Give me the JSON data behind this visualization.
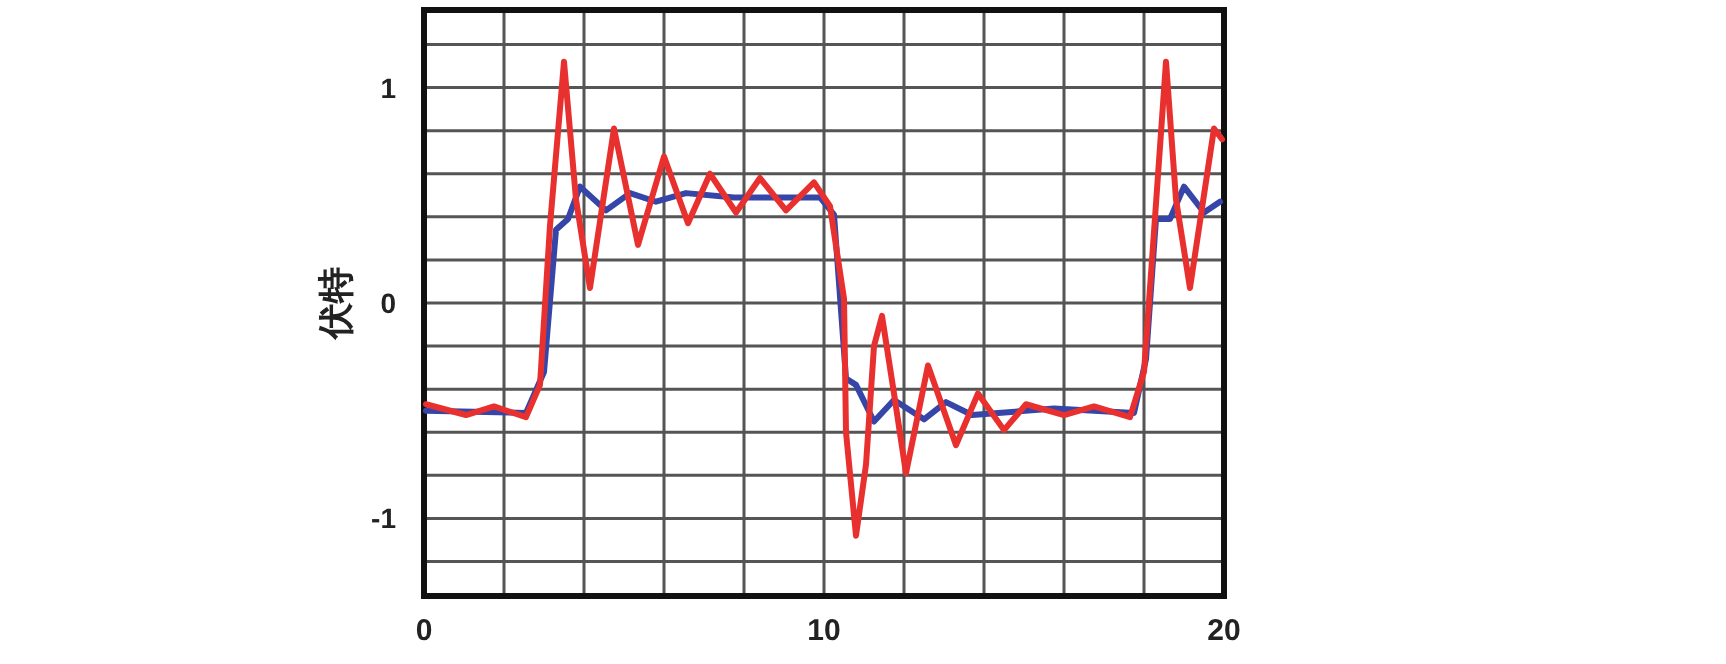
{
  "chart_data": {
    "type": "line",
    "ylabel": "伏特",
    "xlim": [
      0,
      20
    ],
    "ylim": [
      -1.36,
      1.36
    ],
    "xticks": [
      0,
      {
        "value": 2,
        "label": null
      },
      {
        "value": 4,
        "label": null
      },
      {
        "value": 6,
        "label": null
      },
      {
        "value": 8,
        "label": null
      },
      10,
      {
        "value": 12,
        "label": null
      },
      {
        "value": 14,
        "label": null
      },
      {
        "value": 16,
        "label": null
      },
      {
        "value": 18,
        "label": null
      },
      20
    ],
    "yticks": [
      {
        "value": -1.2,
        "label": null
      },
      -1,
      {
        "value": -0.8,
        "label": null
      },
      {
        "value": -0.6,
        "label": null
      },
      {
        "value": -0.4,
        "label": null
      },
      {
        "value": -0.2,
        "label": null
      },
      0,
      {
        "value": 0.2,
        "label": null
      },
      {
        "value": 0.4,
        "label": null
      },
      {
        "value": 0.6,
        "label": null
      },
      {
        "value": 0.8,
        "label": null
      },
      1,
      {
        "value": 1.2,
        "label": null
      }
    ],
    "grid": true,
    "marker": "none",
    "line_style": "solid",
    "series": [
      {
        "color": "#3546a8",
        "x": [
          0.05,
          2.55,
          3.0,
          3.3,
          3.6,
          3.9,
          4.55,
          5.15,
          5.8,
          6.55,
          7.75,
          9.9,
          10.25,
          10.55,
          10.8,
          11.25,
          11.75,
          12.5,
          13.05,
          13.7,
          15.75,
          17.75,
          18.05,
          18.3,
          18.65,
          19.0,
          19.5,
          19.9
        ],
        "values": [
          -0.5,
          -0.51,
          -0.32,
          0.34,
          0.39,
          0.54,
          0.43,
          0.51,
          0.47,
          0.51,
          0.49,
          0.49,
          0.41,
          -0.35,
          -0.38,
          -0.55,
          -0.45,
          -0.54,
          -0.46,
          -0.52,
          -0.49,
          -0.51,
          -0.26,
          0.39,
          0.39,
          0.54,
          0.42,
          0.47
        ]
      },
      {
        "color": "#e8312f",
        "x": [
          0.05,
          1.05,
          1.75,
          2.55,
          2.9,
          3.15,
          3.5,
          3.8,
          4.15,
          4.75,
          5.35,
          6.0,
          6.6,
          7.15,
          7.8,
          8.4,
          9.05,
          9.75,
          10.15,
          10.5,
          10.55,
          10.8,
          11.05,
          11.25,
          11.45,
          11.75,
          12.05,
          12.6,
          13.3,
          13.85,
          14.5,
          15.05,
          16.0,
          16.75,
          17.65,
          18.0,
          18.25,
          18.55,
          18.8,
          19.15,
          19.75,
          19.95
        ],
        "values": [
          -0.47,
          -0.52,
          -0.48,
          -0.53,
          -0.38,
          0.36,
          1.12,
          0.48,
          0.07,
          0.81,
          0.27,
          0.68,
          0.37,
          0.6,
          0.42,
          0.58,
          0.43,
          0.56,
          0.45,
          0.02,
          -0.6,
          -1.08,
          -0.75,
          -0.2,
          -0.06,
          -0.42,
          -0.79,
          -0.29,
          -0.66,
          -0.42,
          -0.59,
          -0.47,
          -0.52,
          -0.48,
          -0.53,
          -0.32,
          0.33,
          1.12,
          0.48,
          0.07,
          0.81,
          0.76
        ]
      }
    ]
  }
}
